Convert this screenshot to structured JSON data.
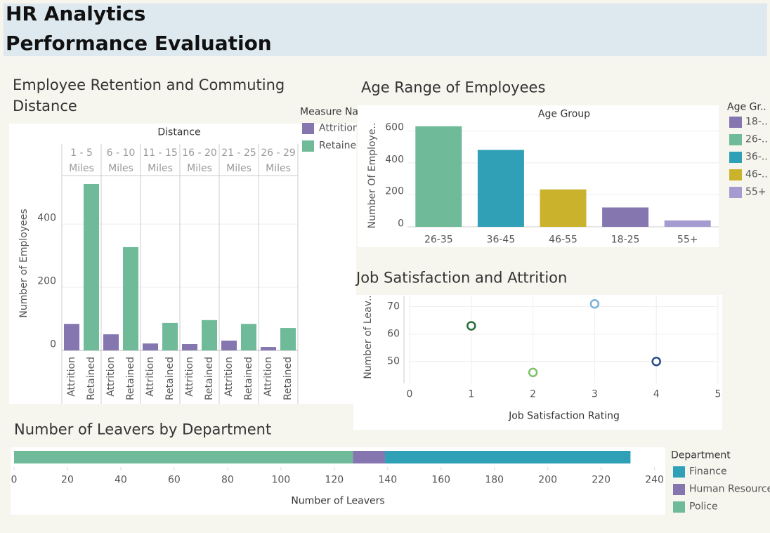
{
  "header": {
    "lines": [
      "HR Analytics",
      "Performance Evaluation"
    ]
  },
  "chart_data": [
    {
      "type": "faceted_bar",
      "title": "Employee Retention and Commuting Distance",
      "facet_label": "Distance",
      "categories": [
        "1 - 5 Miles",
        "6 - 10 Miles",
        "11 - 15 Miles",
        "16 - 20 Miles",
        "21 - 25 Miles",
        "26 - 29 Miles"
      ],
      "series": [
        {
          "name": "Attrition",
          "color": "#8576b0",
          "values": [
            84,
            51,
            22,
            20,
            31,
            11
          ]
        },
        {
          "name": "Retained",
          "color": "#6fba98",
          "values": [
            527,
            327,
            87,
            96,
            84,
            71
          ]
        }
      ],
      "ylabel": "Number of Employees",
      "ylim": [
        0,
        547
      ],
      "yticks": [
        0,
        200,
        400
      ],
      "grid": true,
      "legend": {
        "title": "Measure Names"
      }
    },
    {
      "type": "bar",
      "title": "Age Range of Employees",
      "header": "Age Group",
      "categories": [
        "26-35",
        "36-45",
        "46-55",
        "18-25",
        "55+"
      ],
      "values": [
        629,
        481,
        234,
        121,
        40
      ],
      "colors": [
        "#6fba98",
        "#2fa0b5",
        "#cbb22c",
        "#8576b0",
        "#a59bd0"
      ],
      "ylabel": "Number Of Employe..",
      "ylim": [
        0,
        650
      ],
      "yticks": [
        0,
        200,
        400,
        600
      ],
      "grid": true,
      "legend": {
        "title": "Age Gr..",
        "labels": [
          "18-..",
          "26-..",
          "36-..",
          "46-..",
          "55+"
        ],
        "colors": [
          "#8576b0",
          "#6fba98",
          "#2fa0b5",
          "#cbb22c",
          "#a59bd0"
        ]
      }
    },
    {
      "type": "scatter",
      "title": "Job Satisfaction and Attrition",
      "x": [
        1,
        2,
        3,
        4
      ],
      "values": [
        63,
        46,
        71,
        50
      ],
      "colors": [
        "#2a6b3a",
        "#7cc36a",
        "#7ab2d8",
        "#2b4a8a"
      ],
      "xlabel": "Job Satisfaction Rating",
      "ylabel": "Number of Leav..",
      "xlim": [
        0,
        5
      ],
      "xticks": [
        0,
        1,
        2,
        3,
        4,
        5
      ],
      "ylim": [
        42,
        74
      ],
      "yticks": [
        50,
        60,
        70
      ],
      "grid": true
    },
    {
      "type": "stacked_hbar",
      "title": "Number of Leavers by Department",
      "series": [
        {
          "name": "Finance",
          "color": "#2fa0b5",
          "values": [
            92
          ]
        },
        {
          "name": "Human Resources",
          "color": "#8576b0",
          "values": [
            12
          ]
        },
        {
          "name": "Police",
          "color": "#6fba98",
          "values": [
            127
          ]
        }
      ],
      "xlabel": "Number of Leavers",
      "xlim": [
        0,
        243
      ],
      "xticks": [
        0,
        20,
        40,
        60,
        80,
        100,
        120,
        140,
        160,
        180,
        200,
        220,
        240
      ],
      "legend": {
        "title": "Department"
      }
    }
  ]
}
